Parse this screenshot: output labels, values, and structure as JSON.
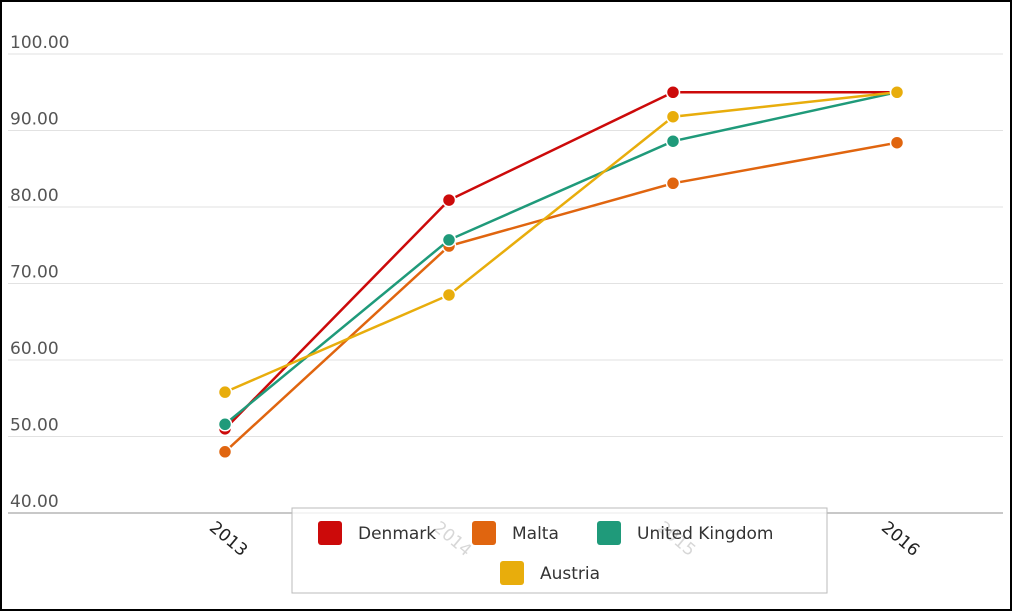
{
  "chart_data": {
    "type": "line",
    "categories": [
      "2013",
      "2014",
      "2015",
      "2016"
    ],
    "series": [
      {
        "name": "Denmark",
        "color": "#cc0a0a",
        "values": [
          51.0,
          80.9,
          95.0,
          95.0
        ]
      },
      {
        "name": "Malta",
        "color": "#e0650f",
        "values": [
          48.0,
          74.9,
          83.1,
          88.4
        ]
      },
      {
        "name": "United Kingdom",
        "color": "#1f9a7a",
        "values": [
          51.6,
          75.7,
          88.6,
          95.0
        ]
      },
      {
        "name": "Austria",
        "color": "#e8ad0c",
        "values": [
          55.8,
          68.5,
          91.8,
          95.0
        ]
      }
    ],
    "ylim": [
      40,
      100
    ],
    "yticks": [
      {
        "value": 40,
        "label": "40.00"
      },
      {
        "value": 50,
        "label": "50.00"
      },
      {
        "value": 60,
        "label": "60.00"
      },
      {
        "value": 70,
        "label": "70.00"
      },
      {
        "value": 80,
        "label": "80.00"
      },
      {
        "value": 90,
        "label": "90.00"
      },
      {
        "value": 100,
        "label": "100.00"
      }
    ],
    "grid": true
  }
}
